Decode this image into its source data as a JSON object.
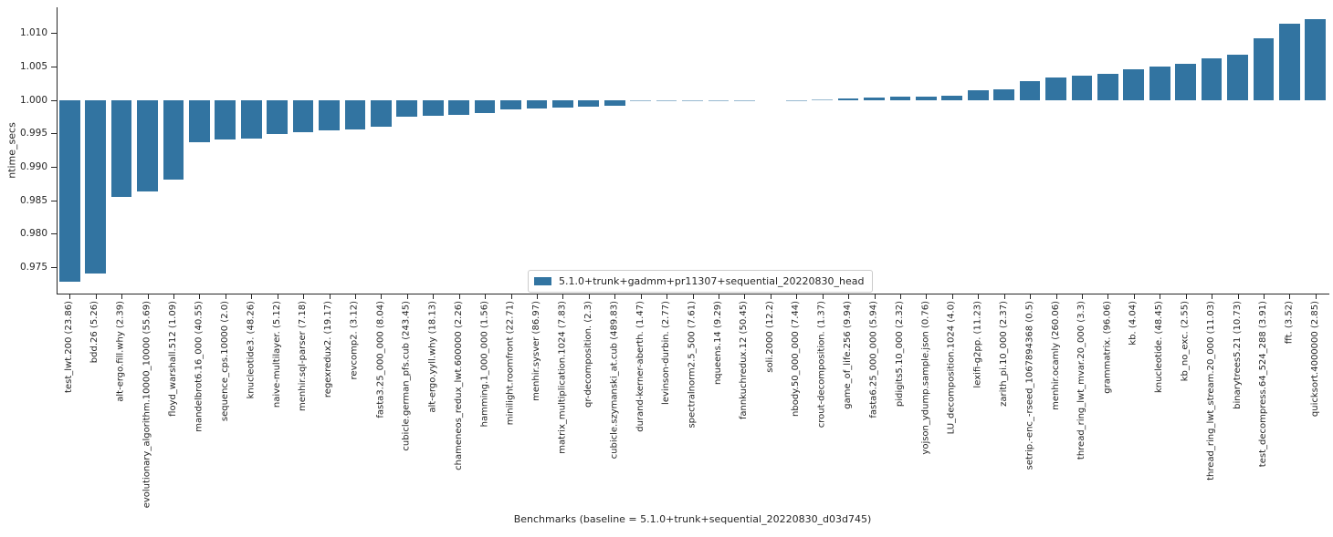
{
  "chart_data": {
    "type": "bar",
    "title": "",
    "ylabel": "ntime_secs",
    "xlabel": "Benchmarks (baseline = 5.1.0+trunk+sequential_20220830_d03d745)",
    "legend": {
      "label": "5.1.0+trunk+gadmm+pr11307+sequential_20220830_head",
      "position": "inside-bottom-center"
    },
    "bar_color": "#3274a1",
    "baseline": 1.0,
    "grid": false,
    "ylim": [
      0.9711,
      1.0139
    ],
    "yticks": [
      0.975,
      0.98,
      0.985,
      0.99,
      0.995,
      1.0,
      1.005,
      1.01
    ],
    "categories": [
      "test_lwt.200 (23.86)",
      "bdd.26 (5.26)",
      "alt-ergo.fill.why (2.39)",
      "evolutionary_algorithm.10000_10000 (55.69)",
      "floyd_warshall.512 (1.09)",
      "mandelbrot6.16_000 (40.55)",
      "sequence_cps.10000 (2.0)",
      "knucleotide3. (48.26)",
      "naive-multilayer. (5.12)",
      "menhir.sql-parser (7.18)",
      "regexredux2. (19.17)",
      "revcomp2. (3.12)",
      "fasta3.25_000_000 (8.04)",
      "cubicle.german_pfs.cub (243.45)",
      "alt-ergo.yyll.why (18.13)",
      "chameneos_redux_lwt.600000 (2.26)",
      "hamming.1_000_000 (1.56)",
      "minilight.roomfront (22.71)",
      "menhir.sysver (86.97)",
      "matrix_multiplication.1024 (7.83)",
      "qr-decomposition. (2.3)",
      "cubicle.szymanski_at.cub (489.83)",
      "durand-kerner-aberth. (1.47)",
      "levinson-durbin. (2.77)",
      "spectralnorm2.5_500 (7.61)",
      "nqueens.14 (9.29)",
      "fannkuchredux.12 (50.45)",
      "soli.2000 (12.2)",
      "nbody.50_000_000 (7.44)",
      "crout-decomposition. (1.37)",
      "game_of_life.256 (9.94)",
      "fasta6.25_000_000 (5.94)",
      "pidigits5.10_000 (2.32)",
      "yojson_ydump.sample.json (0.76)",
      "LU_decomposition.1024 (4.0)",
      "lexifi-g2pp. (11.23)",
      "zarith_pi.10_000 (2.37)",
      "setrip.-enc_-rseed_1067894368 (0.5)",
      "menhir.ocamly (260.06)",
      "thread_ring_lwt_mvar.20_000 (3.3)",
      "grammatrix. (96.06)",
      "kb. (4.04)",
      "knucleotide. (48.45)",
      "kb_no_exc. (2.55)",
      "thread_ring_lwt_stream.20_000 (11.03)",
      "binarytrees5.21 (10.73)",
      "test_decompress.64_524_288 (3.91)",
      "fft. (3.52)",
      "quicksort.4000000 (2.85)"
    ],
    "values": [
      0.9729,
      0.9741,
      0.9856,
      0.9864,
      0.9881,
      0.9938,
      0.9941,
      0.9943,
      0.995,
      0.9952,
      0.9955,
      0.9957,
      0.996,
      0.9976,
      0.9977,
      0.9978,
      0.9981,
      0.9986,
      0.9988,
      0.9989,
      0.999,
      0.9992,
      0.9998,
      0.99985,
      0.9999,
      0.9999,
      0.99995,
      1.0,
      1.00005,
      1.0001,
      1.0003,
      1.0004,
      1.0005,
      1.0006,
      1.0007,
      1.0015,
      1.0016,
      1.0029,
      1.0034,
      1.0037,
      1.004,
      1.0046,
      1.0051,
      1.0054,
      1.0062,
      1.0068,
      1.0092,
      1.0114,
      1.0121
    ]
  }
}
